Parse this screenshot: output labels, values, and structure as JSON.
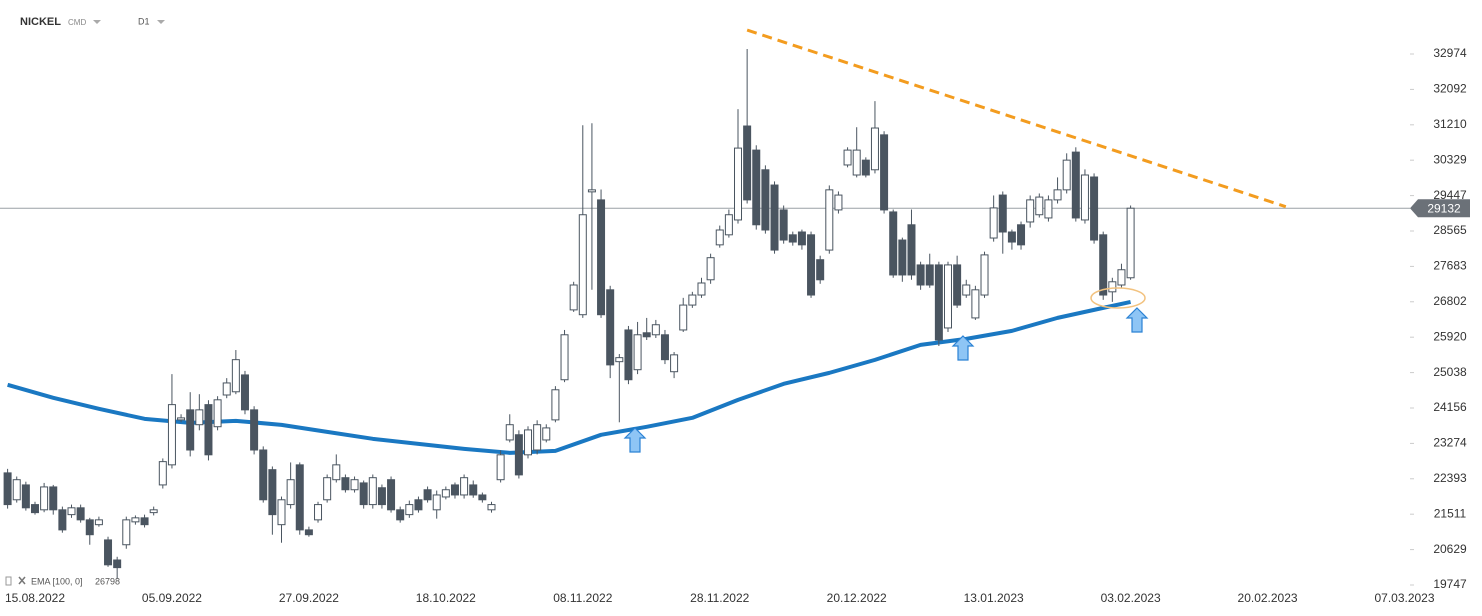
{
  "chart_data": {
    "type": "candlestick",
    "symbol": "NICKEL",
    "market": "CMD",
    "interval": "D1",
    "categories": [
      null,
      null,
      null,
      "15.08.2022",
      null,
      null,
      null,
      null,
      null,
      null,
      null,
      null,
      null,
      null,
      null,
      null,
      null,
      null,
      "05.09.2022",
      null,
      null,
      null,
      null,
      null,
      null,
      null,
      null,
      null,
      null,
      null,
      null,
      null,
      null,
      "27.09.2022",
      null,
      null,
      null,
      null,
      null,
      null,
      null,
      null,
      null,
      null,
      null,
      null,
      null,
      null,
      "18.10.2022",
      null,
      null,
      null,
      null,
      null,
      null,
      null,
      null,
      null,
      null,
      null,
      null,
      null,
      null,
      "08.11.2022",
      null,
      null,
      null,
      null,
      null,
      null,
      null,
      null,
      null,
      null,
      null,
      null,
      null,
      null,
      "28.11.2022",
      null,
      null,
      null,
      null,
      null,
      null,
      null,
      null,
      null,
      null,
      null,
      null,
      null,
      null,
      "20.12.2022",
      null,
      null,
      null,
      null,
      null,
      null,
      null,
      null,
      null,
      null,
      null,
      null,
      null,
      null,
      "13.01.2023",
      null,
      null,
      null,
      null,
      null,
      null,
      null,
      null,
      null,
      null,
      null,
      null,
      null,
      null,
      "03.02.2023",
      null,
      null,
      null,
      null,
      null,
      null,
      null,
      null,
      null,
      null,
      null,
      null,
      null,
      null,
      "20.02.2023",
      null,
      null,
      null,
      null,
      null,
      null,
      null,
      null,
      null,
      null,
      null,
      null,
      null,
      null,
      "07.03.2023"
    ],
    "open": [
      22540,
      21870,
      22240,
      21750,
      21620,
      22190,
      21620,
      21500,
      21670,
      21370,
      21250,
      20870,
      20370,
      20750,
      21320,
      21420,
      21550,
      22240,
      22740,
      23860,
      24110,
      23740,
      24240,
      23690,
      24480,
      24560,
      24980,
      24110,
      23110,
      22620,
      21250,
      21750,
      22740,
      21120,
      21370,
      21870,
      22370,
      22420,
      22120,
      22290,
      21750,
      22170,
      22370,
      21620,
      21500,
      21870,
      22120,
      21620,
      21940,
      22240,
      21990,
      22240,
      21990,
      21620,
      22370,
      23360,
      23490,
      22990,
      23110,
      23360,
      23860,
      24860,
      26600,
      26480,
      29540,
      29340,
      27100,
      25310,
      26100,
      25110,
      26030,
      25980,
      25980,
      25060,
      26100,
      26720,
      26970,
      27350,
      28220,
      28470,
      28840,
      31180,
      30580,
      30090,
      29710,
      29090,
      28470,
      28540,
      28470,
      27850,
      28090,
      29090,
      30210,
      29960,
      30330,
      30090,
      30960,
      29040,
      28340,
      28720,
      27720,
      27720,
      27720,
      26150,
      27720,
      26970,
      26400,
      26970,
      28390,
      29460,
      28540,
      28720,
      28790,
      28970,
      28890,
      29340,
      29590,
      30530,
      28840,
      29910,
      28470,
      27050,
      27220,
      27400,
      null,
      null,
      null,
      null,
      null,
      null,
      null,
      null,
      null,
      null,
      null,
      null,
      null,
      null,
      null,
      null,
      null,
      null,
      null,
      null,
      null,
      null,
      null,
      null,
      null,
      null,
      null,
      null,
      null,
      null
    ],
    "high": [
      22640,
      22450,
      22320,
      21820,
      22290,
      22240,
      21700,
      21750,
      21750,
      21420,
      21450,
      20950,
      20450,
      21450,
      21480,
      21500,
      21700,
      22900,
      25000,
      24000,
      24550,
      24500,
      24350,
      24450,
      24900,
      25600,
      25080,
      24200,
      23200,
      22700,
      21950,
      22800,
      22800,
      21200,
      21820,
      22500,
      23000,
      22500,
      22450,
      22350,
      22500,
      22250,
      22450,
      21700,
      21850,
      21950,
      22200,
      22100,
      22200,
      22300,
      22500,
      22350,
      22050,
      21820,
      23100,
      24000,
      23600,
      23700,
      23850,
      23750,
      24700,
      26100,
      27300,
      31200,
      31250,
      29600,
      27200,
      25500,
      26200,
      26300,
      26400,
      26350,
      26100,
      25550,
      26900,
      27050,
      27400,
      28000,
      28700,
      29100,
      31600,
      33100,
      30700,
      30200,
      29800,
      29200,
      28550,
      28600,
      28550,
      27950,
      29700,
      29550,
      30650,
      31150,
      30400,
      31800,
      31050,
      29100,
      28400,
      29100,
      27800,
      28000,
      27800,
      27800,
      27950,
      27350,
      27200,
      28050,
      29450,
      29550,
      28600,
      28800,
      29450,
      29500,
      29450,
      29900,
      30500,
      30650,
      30100,
      30000,
      28550,
      27400,
      27750,
      29200,
      null,
      null,
      null,
      null,
      null,
      null,
      null,
      null,
      null,
      null,
      null,
      null,
      null,
      null,
      null,
      null,
      null,
      null,
      null,
      null,
      null,
      null,
      null,
      null,
      null,
      null,
      null,
      null,
      null,
      null
    ],
    "low": [
      21650,
      21800,
      21600,
      21500,
      21560,
      21500,
      21050,
      21420,
      21300,
      20750,
      21200,
      20200,
      19900,
      20650,
      21250,
      21180,
      21480,
      22150,
      22650,
      23800,
      22950,
      23600,
      22850,
      23600,
      24400,
      24500,
      24000,
      23000,
      21800,
      21000,
      20800,
      21650,
      21000,
      20950,
      21300,
      21800,
      22300,
      22050,
      22050,
      21650,
      21650,
      21650,
      21550,
      21300,
      21420,
      21550,
      21800,
      21400,
      21880,
      21900,
      21900,
      21920,
      21800,
      21550,
      22300,
      23300,
      22400,
      22900,
      23000,
      23300,
      23800,
      24800,
      26550,
      26400,
      27100,
      26400,
      24900,
      23800,
      24750,
      25000,
      25850,
      25900,
      25250,
      24900,
      26050,
      26650,
      26900,
      27250,
      28150,
      28400,
      28750,
      29250,
      28600,
      28500,
      28000,
      28250,
      28200,
      28100,
      26900,
      27250,
      28000,
      29000,
      30150,
      29900,
      29900,
      30000,
      29000,
      27400,
      27300,
      27350,
      27100,
      27150,
      25700,
      26050,
      26650,
      26900,
      26350,
      26900,
      28300,
      28000,
      28100,
      28100,
      28650,
      28900,
      28800,
      29250,
      29500,
      28800,
      28750,
      28250,
      26850,
      26800,
      27150,
      27350,
      null,
      null,
      null,
      null,
      null,
      null,
      null,
      null,
      null,
      null,
      null,
      null,
      null,
      null,
      null,
      null,
      null,
      null,
      null,
      null,
      null,
      null,
      null,
      null,
      null,
      null,
      null,
      null,
      null,
      null
    ],
    "close": [
      21750,
      22370,
      21670,
      21550,
      22190,
      21620,
      21120,
      21670,
      21370,
      21000,
      21370,
      20250,
      20180,
      21370,
      21420,
      21250,
      21620,
      22820,
      24240,
      23910,
      23110,
      24110,
      22990,
      24360,
      24780,
      25360,
      24110,
      23110,
      21870,
      21500,
      21870,
      22370,
      21120,
      21000,
      21750,
      22420,
      22740,
      22120,
      22370,
      21750,
      22420,
      21750,
      21620,
      21370,
      21750,
      21620,
      21870,
      21990,
      22120,
      21990,
      22420,
      21990,
      21870,
      21750,
      22990,
      23740,
      22490,
      23610,
      23740,
      23660,
      24610,
      25980,
      27220,
      28970,
      29590,
      26480,
      25230,
      25410,
      24860,
      25980,
      25930,
      26230,
      25360,
      25480,
      26720,
      26970,
      27270,
      27900,
      28590,
      28970,
      30630,
      29340,
      28720,
      28590,
      28090,
      28340,
      28290,
      28220,
      26970,
      27350,
      29590,
      29460,
      30580,
      30580,
      29960,
      31130,
      29090,
      27470,
      27470,
      27470,
      27220,
      27220,
      25850,
      27720,
      26720,
      27220,
      27100,
      27970,
      29140,
      28540,
      28290,
      28220,
      29340,
      29410,
      29340,
      29590,
      30330,
      28890,
      29960,
      28340,
      26970,
      27300,
      27600,
      29132,
      null,
      null,
      null,
      null,
      null,
      null,
      null,
      null,
      null,
      null,
      null,
      null,
      null,
      null,
      null,
      null,
      null,
      null,
      null,
      null,
      null,
      null,
      null,
      null,
      null,
      null,
      null,
      null,
      null,
      null
    ],
    "up_color": "#ffffff",
    "down_color": "#4a5560",
    "ylim": [
      19498,
      34319
    ],
    "yticks": [
      32974,
      32092,
      31210,
      30329,
      29447,
      28565,
      27683,
      26802,
      25920,
      25038,
      24156,
      23274,
      22393,
      21511,
      20629,
      19747
    ],
    "ema": {
      "name": "EMA [100, 0]",
      "color": "#1a78c2",
      "x": [
        0,
        5,
        10,
        15,
        20,
        25,
        30,
        35,
        40,
        45,
        50,
        55,
        60,
        65,
        70,
        75,
        80,
        85,
        90,
        95,
        100,
        105,
        110,
        115,
        120,
        123
      ],
      "values": [
        24733,
        24409,
        24135,
        23886,
        23786,
        23836,
        23736,
        23562,
        23388,
        23263,
        23139,
        23039,
        23089,
        23488,
        23687,
        23911,
        24359,
        24758,
        25031,
        25355,
        25729,
        25878,
        26077,
        26401,
        26650,
        26798
      ]
    },
    "trendline": {
      "color": "#f39c1f",
      "x": [
        81,
        140
      ],
      "values": [
        33570,
        29170
      ]
    }
  }
}
